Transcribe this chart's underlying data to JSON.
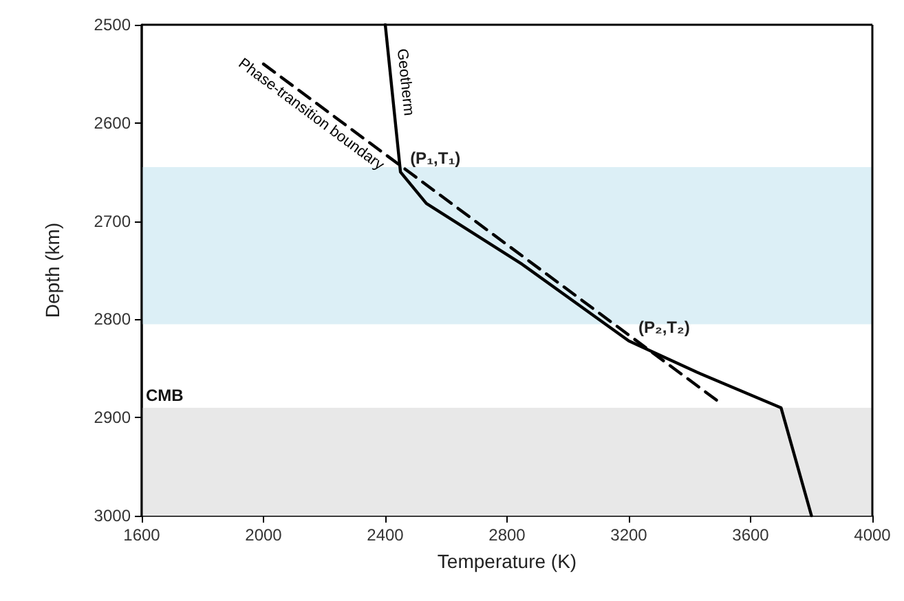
{
  "chart_data": {
    "type": "line",
    "xlabel": "Temperature (K)",
    "ylabel": "Depth (km)",
    "xlim": [
      1600,
      4000
    ],
    "xticks": [
      1600,
      2000,
      2400,
      2800,
      3200,
      3600,
      4000
    ],
    "ylim": [
      3000,
      2500
    ],
    "yticks": [
      2500,
      2600,
      2700,
      2800,
      2900,
      3000
    ],
    "grid": false,
    "legend": false,
    "marker": "none",
    "series": [
      {
        "name": "Geotherm",
        "color": "#000000",
        "line_style": "solid",
        "x": [
          2400,
          2450,
          2535,
          2850,
          3200,
          3425,
          3700,
          3800
        ],
        "values": [
          2500,
          2650,
          2682,
          2744,
          2822,
          2854,
          2890,
          3000
        ]
      },
      {
        "name": "Phase-transition boundary",
        "color": "#000000",
        "line_style": "dashed",
        "x": [
          2000,
          3500
        ],
        "values": [
          2540,
          2885
        ]
      }
    ],
    "bands": [
      {
        "axis": "y",
        "from": 2645,
        "to": 2805,
        "color": "#dcEFF6"
      },
      {
        "axis": "y",
        "from": 2890,
        "to": 3000,
        "color": "#e8e8e8",
        "label": "CMB"
      }
    ],
    "annotations": [
      {
        "text": "(P₁,T₁)",
        "x": 2450,
        "y": 2650
      },
      {
        "text": "(P₂,T₂)",
        "x": 3200,
        "y": 2822
      }
    ]
  }
}
